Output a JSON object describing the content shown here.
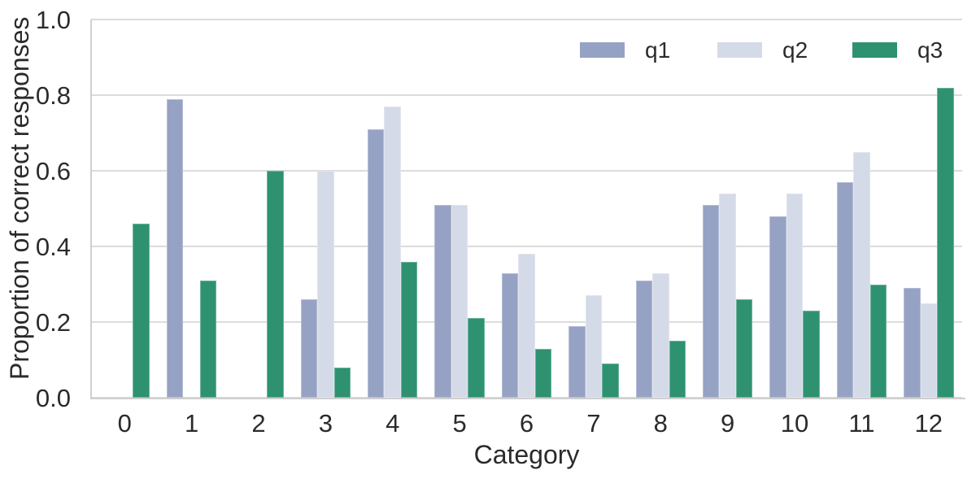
{
  "chart_data": {
    "type": "bar",
    "title": "",
    "xlabel": "Category",
    "ylabel": "Proportion of correct responses",
    "categories": [
      "0",
      "1",
      "2",
      "3",
      "4",
      "5",
      "6",
      "7",
      "8",
      "9",
      "10",
      "11",
      "12"
    ],
    "series": [
      {
        "name": "q1",
        "color": "#96a2c4",
        "values": [
          0,
          0.79,
          0,
          0.26,
          0.71,
          0.51,
          0.33,
          0.19,
          0.31,
          0.51,
          0.48,
          0.57,
          0.29
        ]
      },
      {
        "name": "q2",
        "color": "#d4dae7",
        "values": [
          0,
          0,
          0,
          0.6,
          0.77,
          0.51,
          0.38,
          0.27,
          0.33,
          0.54,
          0.54,
          0.65,
          0.25
        ]
      },
      {
        "name": "q3",
        "color": "#2e9271",
        "values": [
          0.46,
          0.31,
          0.6,
          0.08,
          0.36,
          0.21,
          0.13,
          0.09,
          0.15,
          0.26,
          0.23,
          0.3,
          0.82
        ]
      }
    ],
    "ylim": [
      0,
      1
    ],
    "yticks": [
      0,
      0.2,
      0.4,
      0.6,
      0.8,
      1.0
    ],
    "ytick_labels": [
      "0.0",
      "0.2",
      "0.4",
      "0.6",
      "0.8",
      "1.0"
    ],
    "grid": true,
    "legend_position": "upper right",
    "legend_entries": [
      "q1",
      "q2",
      "q3"
    ]
  },
  "colors": {
    "gridline": "#dcdcdc",
    "spine": "#cfcfcf",
    "text": "#2b2b2b",
    "background": "#ffffff"
  }
}
